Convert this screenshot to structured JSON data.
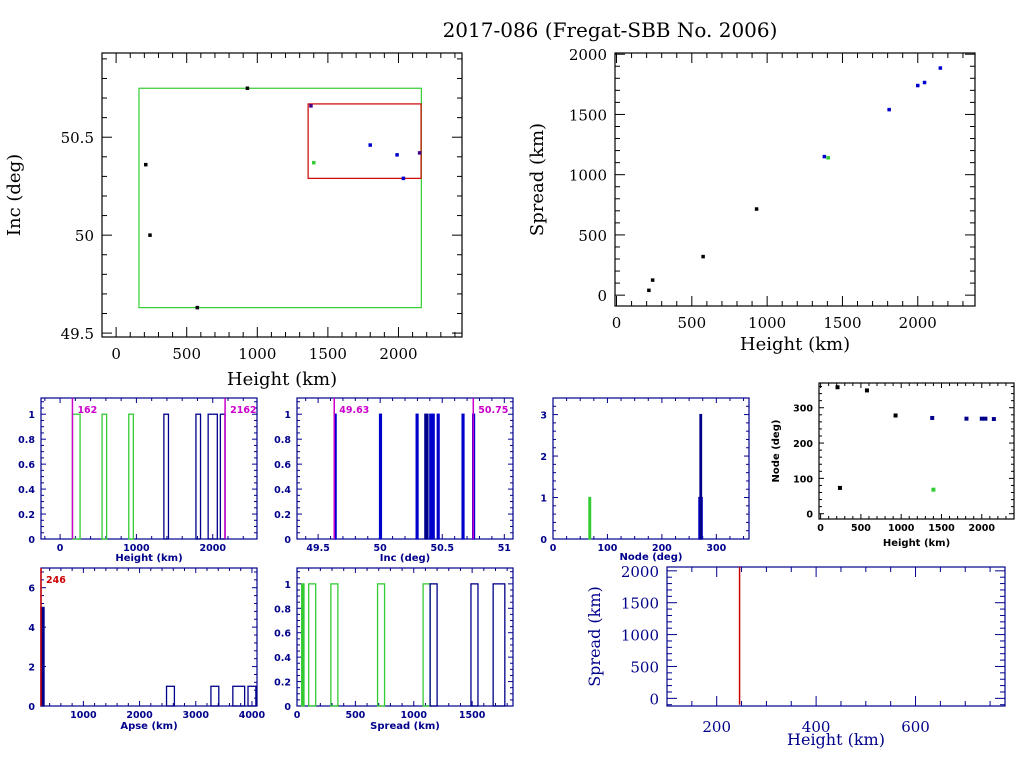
{
  "title": "2017-086 (Fregat-SBB No. 2006)",
  "colors": {
    "axis_black": "#000000",
    "axis_blue": "#00008b",
    "green": "#33cc33",
    "red": "#cc0000",
    "magenta": "#cc00cc",
    "blue": "#0000cc",
    "purple": "#440088"
  },
  "chart_data": [
    {
      "id": "inc-vs-height",
      "type": "scatter",
      "title": "",
      "xlabel": "Height (km)",
      "ylabel": "Inc (deg)",
      "xlim": [
        -100,
        2450
      ],
      "ylim": [
        49.48,
        50.93
      ],
      "xticks": [
        0,
        500,
        1000,
        1500,
        2000
      ],
      "yticks": [
        49.5,
        50,
        50.5
      ],
      "ytick_labels": [
        "49.5",
        "50",
        "50.5"
      ],
      "boxes": [
        {
          "name": "green-box",
          "color": "green",
          "x": [
            162,
            2162
          ],
          "y": [
            49.63,
            50.75
          ]
        },
        {
          "name": "red-box",
          "color": "red",
          "x": [
            1360,
            2160
          ],
          "y": [
            50.29,
            50.67
          ]
        }
      ],
      "points": [
        {
          "x": 930,
          "y": 50.75,
          "color": "axis_black"
        },
        {
          "x": 210,
          "y": 50.36,
          "color": "axis_black"
        },
        {
          "x": 240,
          "y": 50.0,
          "color": "axis_black"
        },
        {
          "x": 575,
          "y": 49.63,
          "color": "axis_black"
        },
        {
          "x": 1380,
          "y": 50.66,
          "color": "purple"
        },
        {
          "x": 1400,
          "y": 50.37,
          "color": "green"
        },
        {
          "x": 1800,
          "y": 50.46,
          "color": "blue"
        },
        {
          "x": 1990,
          "y": 50.41,
          "color": "blue"
        },
        {
          "x": 2150,
          "y": 50.42,
          "color": "purple"
        },
        {
          "x": 2035,
          "y": 50.29,
          "color": "blue"
        }
      ]
    },
    {
      "id": "spread-vs-height",
      "type": "scatter",
      "xlabel": "Height (km)",
      "ylabel": "Spread (km)",
      "xlim": [
        -10,
        2380
      ],
      "ylim": [
        -90,
        2010
      ],
      "xticks": [
        0,
        500,
        1000,
        1500,
        2000
      ],
      "yticks": [
        0,
        500,
        1000,
        1500,
        2000
      ],
      "points": [
        {
          "x": 215,
          "y": 40,
          "color": "axis_black"
        },
        {
          "x": 240,
          "y": 125,
          "color": "axis_black"
        },
        {
          "x": 575,
          "y": 320,
          "color": "axis_black"
        },
        {
          "x": 930,
          "y": 715,
          "color": "axis_black"
        },
        {
          "x": 1380,
          "y": 1150,
          "color": "blue"
        },
        {
          "x": 1405,
          "y": 1140,
          "color": "green"
        },
        {
          "x": 1810,
          "y": 1540,
          "color": "blue"
        },
        {
          "x": 2000,
          "y": 1740,
          "color": "blue"
        },
        {
          "x": 2045,
          "y": 1765,
          "color": "blue"
        },
        {
          "x": 2150,
          "y": 1885,
          "color": "blue"
        }
      ]
    },
    {
      "id": "height-histogram",
      "type": "bar",
      "xlabel": "Height (km)",
      "ylabel": "",
      "xlim": [
        -250,
        2580
      ],
      "ylim": [
        0,
        1.13
      ],
      "xticks": [
        0,
        1000,
        2000
      ],
      "yticks": [
        0,
        0.2,
        0.4,
        0.6,
        0.8,
        1
      ],
      "ytick_labels": [
        "0",
        "0.2",
        "0.4",
        "0.6",
        "0.8",
        "1"
      ],
      "markers": [
        {
          "value": 162,
          "label": "162",
          "color": "magenta",
          "label_side": "right"
        },
        {
          "value": 2162,
          "label": "2162",
          "color": "magenta",
          "label_side": "right"
        }
      ],
      "bars": [
        {
          "x0": 162,
          "x1": 262,
          "y": 1,
          "color": "green"
        },
        {
          "x0": 550,
          "x1": 610,
          "y": 1,
          "color": "green"
        },
        {
          "x0": 900,
          "x1": 960,
          "y": 1,
          "color": "green"
        },
        {
          "x0": 1360,
          "x1": 1420,
          "y": 1,
          "color": "axis_blue"
        },
        {
          "x0": 1780,
          "x1": 1840,
          "y": 1,
          "color": "axis_blue"
        },
        {
          "x0": 1940,
          "x1": 2060,
          "y": 1,
          "color": "axis_blue"
        },
        {
          "x0": 2100,
          "x1": 2160,
          "y": 1,
          "color": "axis_blue"
        }
      ]
    },
    {
      "id": "inc-histogram",
      "type": "bar",
      "xlabel": "Inc (deg)",
      "ylabel": "",
      "xlim": [
        49.33,
        51.07
      ],
      "ylim": [
        0,
        1.13
      ],
      "xticks": [
        49.5,
        50,
        50.5,
        51
      ],
      "xtick_labels": [
        "49.5",
        "50",
        "50.5",
        "51"
      ],
      "yticks": [
        0,
        0.2,
        0.4,
        0.6,
        0.8,
        1
      ],
      "ytick_labels": [
        "0",
        "0.2",
        "0.4",
        "0.6",
        "0.8",
        "1"
      ],
      "markers": [
        {
          "value": 49.63,
          "label": "49.63",
          "color": "magenta"
        },
        {
          "value": 50.75,
          "label": "50.75",
          "color": "magenta"
        }
      ],
      "bars": [
        {
          "x0": 49.63,
          "x1": 49.645,
          "y": 1,
          "color": "blue"
        },
        {
          "x0": 49.995,
          "x1": 50.01,
          "y": 1,
          "color": "blue"
        },
        {
          "x0": 50.29,
          "x1": 50.305,
          "y": 1,
          "color": "blue"
        },
        {
          "x0": 50.36,
          "x1": 50.385,
          "y": 1,
          "color": "axis_blue"
        },
        {
          "x0": 50.4,
          "x1": 50.415,
          "y": 1,
          "color": "blue"
        },
        {
          "x0": 50.42,
          "x1": 50.435,
          "y": 1,
          "color": "blue"
        },
        {
          "x0": 50.46,
          "x1": 50.475,
          "y": 1,
          "color": "blue"
        },
        {
          "x0": 50.66,
          "x1": 50.675,
          "y": 1,
          "color": "blue"
        },
        {
          "x0": 50.745,
          "x1": 50.76,
          "y": 1,
          "color": "blue"
        }
      ]
    },
    {
      "id": "node-histogram",
      "type": "bar",
      "xlabel": "Node (deg)",
      "ylabel": "",
      "xlim": [
        0,
        360
      ],
      "ylim": [
        0,
        3.4
      ],
      "xticks": [
        0,
        100,
        200,
        300
      ],
      "yticks": [
        0,
        1,
        2,
        3
      ],
      "bars": [
        {
          "x0": 66,
          "x1": 69,
          "y": 1,
          "color": "green"
        },
        {
          "x0": 268,
          "x1": 274,
          "y": 1,
          "color": "blue"
        },
        {
          "x0": 270,
          "x1": 270.6,
          "y": 3,
          "color": "axis_blue"
        }
      ]
    },
    {
      "id": "node-vs-height",
      "type": "scatter",
      "xlabel": "Height (km)",
      "ylabel": "Node (deg)",
      "xlim": [
        -20,
        2400
      ],
      "ylim": [
        -15,
        370
      ],
      "xticks": [
        0,
        500,
        1000,
        1500,
        2000
      ],
      "yticks": [
        0,
        100,
        200,
        300
      ],
      "points": [
        {
          "x": 210,
          "y": 358,
          "color": "axis_black"
        },
        {
          "x": 575,
          "y": 349,
          "color": "axis_black"
        },
        {
          "x": 240,
          "y": 73,
          "color": "axis_black"
        },
        {
          "x": 930,
          "y": 278,
          "color": "axis_black"
        },
        {
          "x": 1385,
          "y": 271,
          "color": "axis_blue"
        },
        {
          "x": 1400,
          "y": 68,
          "color": "green"
        },
        {
          "x": 1810,
          "y": 269,
          "color": "axis_blue"
        },
        {
          "x": 2000,
          "y": 269,
          "color": "axis_blue"
        },
        {
          "x": 2045,
          "y": 269,
          "color": "axis_blue"
        },
        {
          "x": 2150,
          "y": 268,
          "color": "axis_blue"
        }
      ]
    },
    {
      "id": "apse-histogram",
      "type": "bar",
      "xlabel": "Apse (km)",
      "ylabel": "",
      "xlim": [
        246,
        4090
      ],
      "ylim": [
        0,
        7
      ],
      "xticks": [
        1000,
        2000,
        3000,
        4000
      ],
      "yticks": [
        0,
        2,
        4,
        6
      ],
      "markers": [
        {
          "value": 246,
          "label": "246",
          "color": "red"
        }
      ],
      "bars": [
        {
          "x0": 246,
          "x1": 300,
          "y": 5,
          "color": "axis_blue"
        },
        {
          "x0": 2480,
          "x1": 2620,
          "y": 1,
          "color": "axis_blue"
        },
        {
          "x0": 3270,
          "x1": 3410,
          "y": 1,
          "color": "axis_blue"
        },
        {
          "x0": 3660,
          "x1": 3870,
          "y": 1,
          "color": "axis_blue"
        },
        {
          "x0": 3930,
          "x1": 4070,
          "y": 1,
          "color": "axis_blue"
        }
      ]
    },
    {
      "id": "spread-histogram",
      "type": "bar",
      "xlabel": "Spread (km)",
      "ylabel": "",
      "xlim": [
        0,
        1850
      ],
      "ylim": [
        0,
        1.13
      ],
      "xticks": [
        0,
        500,
        1000,
        1500
      ],
      "yticks": [
        0,
        0.2,
        0.4,
        0.6,
        0.8,
        1
      ],
      "ytick_labels": [
        "0",
        "0.2",
        "0.4",
        "0.6",
        "0.8",
        "1"
      ],
      "bars": [
        {
          "x0": 40,
          "x1": 60,
          "y": 1,
          "color": "green"
        },
        {
          "x0": 100,
          "x1": 160,
          "y": 1,
          "color": "green"
        },
        {
          "x0": 290,
          "x1": 350,
          "y": 1,
          "color": "green"
        },
        {
          "x0": 690,
          "x1": 750,
          "y": 1,
          "color": "green"
        },
        {
          "x0": 1080,
          "x1": 1140,
          "y": 1,
          "color": "green"
        },
        {
          "x0": 1140,
          "x1": 1200,
          "y": 1,
          "color": "axis_blue"
        },
        {
          "x0": 1490,
          "x1": 1550,
          "y": 1,
          "color": "axis_blue"
        },
        {
          "x0": 1680,
          "x1": 1780,
          "y": 1,
          "color": "axis_blue"
        }
      ]
    },
    {
      "id": "spread-vs-height-zoom",
      "type": "line",
      "xlabel": "Height (km)",
      "ylabel": "Spread (km)",
      "xlim": [
        100,
        780
      ],
      "ylim": [
        -120,
        2060
      ],
      "xticks": [
        200,
        400,
        600
      ],
      "yticks": [
        0,
        500,
        1000,
        1500,
        2000
      ],
      "markers": [
        {
          "value": 246,
          "color": "red",
          "y_from": -100,
          "y_to": 2060
        }
      ]
    }
  ]
}
